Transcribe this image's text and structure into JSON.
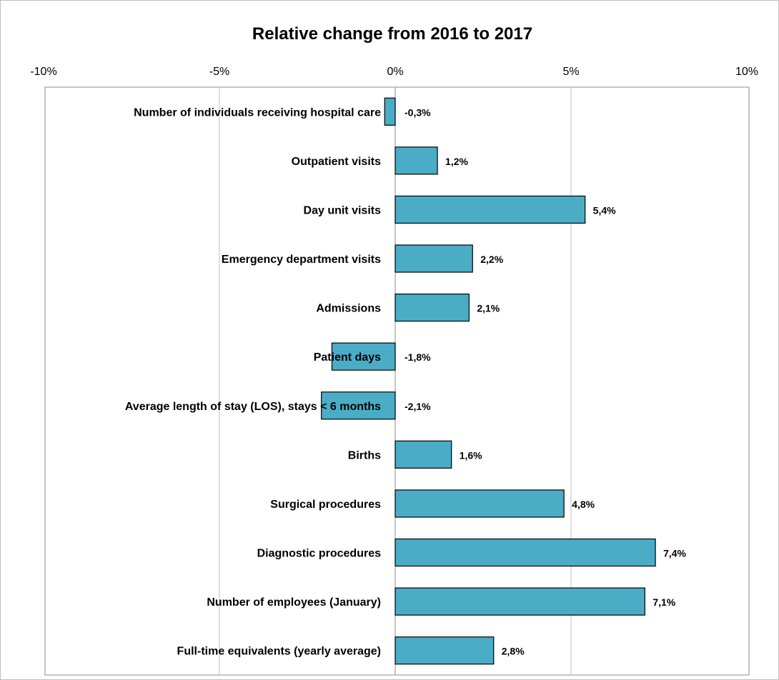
{
  "chart_data": {
    "type": "bar",
    "orientation": "horizontal",
    "title": "Relative change from 2016 to 2017",
    "xlim": [
      -10,
      10
    ],
    "x_ticks": [
      -10,
      -5,
      0,
      5,
      10
    ],
    "x_tick_labels": [
      "-10%",
      "-5%",
      "0%",
      "5%",
      "10%"
    ],
    "x_axis_position": "top",
    "grid": true,
    "legend": "none",
    "bar_color": "#4BACC6",
    "categories": [
      "Number of individuals  receiving hospital care",
      "Outpatient visits",
      "Day unit visits",
      "Emergency department visits",
      "Admissions",
      "Patient days",
      "Average length of stay (LOS), stays < 6 months",
      "Births",
      "Surgical procedures",
      "Diagnostic procedures",
      "Number of employees (January)",
      "Full-time equivalents  (yearly average)"
    ],
    "values": [
      -0.3,
      1.2,
      5.4,
      2.2,
      2.1,
      -1.8,
      -2.1,
      1.6,
      4.8,
      7.4,
      7.1,
      2.8
    ],
    "value_labels": [
      "-0,3%",
      "1,2%",
      "5,4%",
      "2,2%",
      "2,1%",
      "-1,8%",
      "-2,1%",
      "1,6%",
      "4,8%",
      "7,4%",
      "7,1%",
      "2,8%"
    ]
  }
}
